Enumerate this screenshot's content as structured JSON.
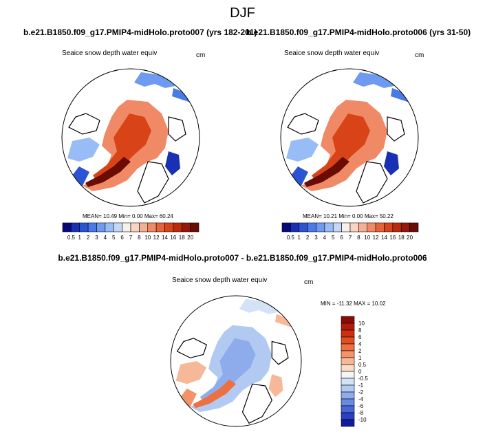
{
  "page": {
    "season": "DJF"
  },
  "panels": [
    {
      "case_label": "b.e21.B1850.f09_g17.PMIP4-midHolo.proto007 (yrs 182-201)",
      "field": "Seaice snow depth water equiv",
      "units": "cm",
      "stats": "MEAN=  10.49  Min=   0.00  Max=  60.24"
    },
    {
      "case_label": "b.e21.B1850.f09_g17.PMIP4-midHolo.proto006 (yrs 31-50)",
      "field": "Seaice snow depth water equiv",
      "units": "cm",
      "stats": "MEAN=  10.21  Min=   0.00  Max=  50.22"
    }
  ],
  "diff_panel": {
    "title": "b.e21.B1850.f09_g17.PMIP4-midHolo.proto007 - b.e21.B1850.f09_g17.PMIP4-midHolo.proto006",
    "field": "Seaice snow depth water equiv",
    "units": "cm",
    "minmax": "MIN = -11.32 MAX = 10.02"
  },
  "chart_data": [
    {
      "type": "heatmap",
      "title": "b.e21.B1850.f09_g17.PMIP4-midHolo.proto007 (yrs 182-201)",
      "variable": "Seaice snow depth water equiv",
      "units": "cm",
      "projection": "north polar stereographic",
      "stats": {
        "mean": 10.49,
        "min": 0.0,
        "max": 60.24
      },
      "colorbar": {
        "orientation": "horizontal",
        "levels": [
          "0.5",
          "1",
          "2",
          "3",
          "4",
          "5",
          "6",
          "7",
          "8",
          "10",
          "12",
          "14",
          "16",
          "18",
          "20"
        ],
        "colors": [
          "#08087a",
          "#1830b4",
          "#2a54d2",
          "#4a7ae8",
          "#6e9af2",
          "#98bcf6",
          "#c6d8f8",
          "#f7f1ec",
          "#f8d4c2",
          "#f5b094",
          "#f08a66",
          "#e86238",
          "#d84418",
          "#bc2a0c",
          "#961808",
          "#680c04"
        ]
      }
    },
    {
      "type": "heatmap",
      "title": "b.e21.B1850.f09_g17.PMIP4-midHolo.proto006 (yrs 31-50)",
      "variable": "Seaice snow depth water equiv",
      "units": "cm",
      "projection": "north polar stereographic",
      "stats": {
        "mean": 10.21,
        "min": 0.0,
        "max": 50.22
      },
      "colorbar": {
        "orientation": "horizontal",
        "levels": [
          "0.5",
          "1",
          "2",
          "3",
          "4",
          "5",
          "6",
          "7",
          "8",
          "10",
          "12",
          "14",
          "16",
          "18",
          "20"
        ],
        "colors": [
          "#08087a",
          "#1830b4",
          "#2a54d2",
          "#4a7ae8",
          "#6e9af2",
          "#98bcf6",
          "#c6d8f8",
          "#f7f1ec",
          "#f8d4c2",
          "#f5b094",
          "#f08a66",
          "#e86238",
          "#d84418",
          "#bc2a0c",
          "#961808",
          "#680c04"
        ]
      }
    },
    {
      "type": "heatmap",
      "title": "b.e21.B1850.f09_g17.PMIP4-midHolo.proto007 - b.e21.B1850.f09_g17.PMIP4-midHolo.proto006",
      "variable": "Seaice snow depth water equiv",
      "units": "cm",
      "projection": "north polar stereographic",
      "stats": {
        "min": -11.32,
        "max": 10.02
      },
      "colorbar": {
        "orientation": "vertical",
        "levels": [
          "10",
          "8",
          "6",
          "4",
          "2",
          "1",
          "0.5",
          "0",
          "-0.5",
          "-1",
          "-2",
          "-4",
          "-6",
          "-8",
          "-10"
        ],
        "colors": [
          "#8c0a06",
          "#b01c0c",
          "#cc3010",
          "#e0501e",
          "#ec7040",
          "#f29468",
          "#f6b898",
          "#f9dcc6",
          "#f4f4f4",
          "#d4e2f6",
          "#b2caf2",
          "#8eacec",
          "#6a8ae0",
          "#4866d4",
          "#2a40c0",
          "#101c9c"
        ]
      }
    }
  ]
}
